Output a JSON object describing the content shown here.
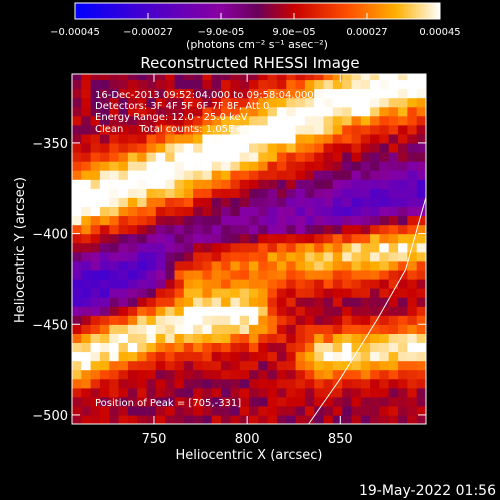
{
  "chart_data": {
    "type": "heatmap",
    "title": "Reconstructed RHESSI Image",
    "xlabel": "Heliocentric X (arcsec)",
    "ylabel": "Heliocentric Y (arcsec)",
    "xlim": [
      706,
      896
    ],
    "ylim": [
      -505,
      -312
    ],
    "xticks": [
      750,
      800,
      850
    ],
    "yticks": [
      -350,
      -400,
      -450,
      -500
    ],
    "grid": false,
    "colorbar": {
      "min": -0.00045,
      "max": 0.00045,
      "ticks": [
        "-0.00045",
        "-0.00027",
        "-9.0e-05",
        "9.0e-05",
        "0.00027",
        "0.00045"
      ],
      "tick_values": [
        -0.00045,
        -0.00027,
        -9e-05,
        9e-05,
        0.00027,
        0.00045
      ],
      "label": "(photons cm⁻² s⁻¹ asec⁻²)",
      "placement": "top"
    },
    "annotations": [
      "16-Dec-2013 09:52:04.000 to 09:58:04.000",
      "Detectors: 3F 4F 5F 6F 7F 8F, Att 0",
      "Energy Range: 12.0 - 25.0 keV",
      "Clean     Total counts: 1.05E+04"
    ],
    "peak_label": "Position of Peak = [705,-331]",
    "peak_position": [
      705,
      -331
    ],
    "bands": [
      {
        "name": "bright band A",
        "points": [
          [
            706,
            -383
          ],
          [
            760,
            -365
          ],
          [
            800,
            -348
          ],
          [
            850,
            -327
          ],
          [
            896,
            -314
          ]
        ],
        "half_width": 13,
        "peak": 0.00045
      },
      {
        "name": "bright band B",
        "points": [
          [
            770,
            -420
          ],
          [
            800,
            -412
          ],
          [
            850,
            -410
          ],
          [
            896,
            -404
          ]
        ],
        "half_width": 11,
        "peak": 0.00042
      },
      {
        "name": "bright band C",
        "points": [
          [
            706,
            -470
          ],
          [
            750,
            -452
          ],
          [
            800,
            -445
          ]
        ],
        "half_width": 11,
        "peak": 0.00041
      },
      {
        "name": "bright band D",
        "points": [
          [
            840,
            -468
          ],
          [
            870,
            -465
          ],
          [
            896,
            -462
          ]
        ],
        "half_width": 10,
        "peak": 0.00038
      },
      {
        "name": "negative trough",
        "points": [
          [
            706,
            -432
          ],
          [
            760,
            -414
          ],
          [
            820,
            -398
          ],
          [
            896,
            -378
          ]
        ],
        "half_width": 13,
        "peak": -0.0003
      }
    ],
    "limb_curve": [
      [
        833,
        -505
      ],
      [
        850,
        -480
      ],
      [
        870,
        -447
      ],
      [
        885,
        -420
      ],
      [
        896,
        -380
      ]
    ]
  },
  "footer": {
    "timestamp": "19-May-2022 01:56"
  }
}
